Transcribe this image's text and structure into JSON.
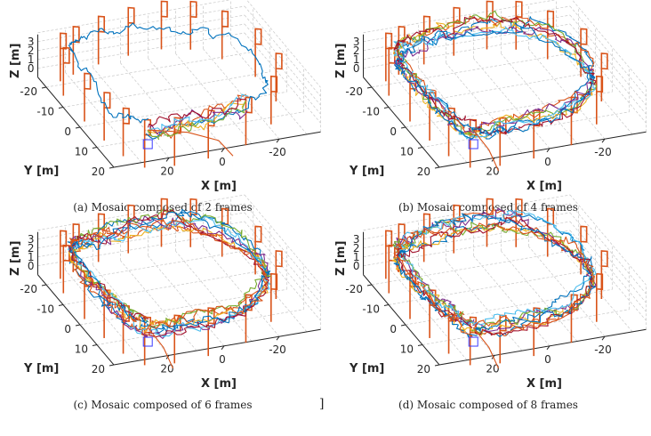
{
  "figure": {
    "stray_text": "]"
  },
  "colors": {
    "landmark": "#D95319",
    "start_marker": "#3a3aff",
    "grid": "#c8c8c8",
    "series": [
      "#0072BD",
      "#D95319",
      "#EDB120",
      "#7E2F8E",
      "#77AC30",
      "#4DBEEE",
      "#A2142F"
    ]
  },
  "chart_data": [
    {
      "type": "line",
      "panel": "a",
      "caption": "(a)  Mosaic composed of 2 frames",
      "frames": 2,
      "xlabel": "X [m]",
      "ylabel": "Y [m]",
      "zlabel": "Z [m]",
      "xticks": [
        "20",
        "0",
        "-20"
      ],
      "yticks": [
        "-20",
        "-10",
        "0",
        "10",
        "20"
      ],
      "zticks": [
        "0",
        "1",
        "2",
        "3"
      ],
      "xlim": [
        -35,
        40
      ],
      "ylim": [
        -25,
        20
      ],
      "zlim": [
        -1,
        3
      ],
      "grid": true,
      "coverage": "full loop (blue) + partial segments near start",
      "trajectory_count": 7
    },
    {
      "type": "line",
      "panel": "b",
      "caption": "(b)  Mosaic composed of 4 frames",
      "frames": 4,
      "xlabel": "X [m]",
      "ylabel": "Y [m]",
      "zlabel": "Z [m]",
      "xticks": [
        "20",
        "0",
        "-20"
      ],
      "yticks": [
        "-20",
        "-10",
        "0",
        "10",
        "20"
      ],
      "zticks": [
        "0",
        "1",
        "2",
        "3"
      ],
      "xlim": [
        -35,
        40
      ],
      "ylim": [
        -25,
        20
      ],
      "zlim": [
        -1,
        3
      ],
      "grid": true,
      "coverage": "full loop",
      "trajectory_count": 8
    },
    {
      "type": "line",
      "panel": "c",
      "caption": "(c)  Mosaic composed of 6 frames",
      "frames": 6,
      "xlabel": "X [m]",
      "ylabel": "Y [m]",
      "zlabel": "Z [m]",
      "xticks": [
        "20",
        "0",
        "-20"
      ],
      "yticks": [
        "-20",
        "-10",
        "0",
        "10",
        "20"
      ],
      "zticks": [
        "0",
        "1",
        "2",
        "3"
      ],
      "xlim": [
        -35,
        40
      ],
      "ylim": [
        -25,
        20
      ],
      "zlim": [
        -1,
        3
      ],
      "grid": true,
      "coverage": "full loop",
      "trajectory_count": 9
    },
    {
      "type": "line",
      "panel": "d",
      "caption": "(d)  Mosaic composed of 8 frames",
      "frames": 8,
      "xlabel": "X [m]",
      "ylabel": "Y [m]",
      "zlabel": "Z [m]",
      "xticks": [
        "20",
        "0",
        "-20"
      ],
      "yticks": [
        "-20",
        "-10",
        "0",
        "10",
        "20"
      ],
      "zticks": [
        "0",
        "1",
        "2",
        "3"
      ],
      "xlim": [
        -35,
        40
      ],
      "ylim": [
        -25,
        20
      ],
      "zlim": [
        -1,
        3
      ],
      "grid": true,
      "coverage": "full loop",
      "trajectory_count": 9
    }
  ],
  "loop_waypoints_xy_m": [
    [
      24,
      14
    ],
    [
      9,
      15
    ],
    [
      -10,
      12
    ],
    [
      -27,
      1
    ],
    [
      -29,
      -14
    ],
    [
      -20,
      -27
    ],
    [
      -9,
      -31
    ],
    [
      8,
      -30
    ],
    [
      22,
      -27
    ],
    [
      29,
      -23
    ],
    [
      30,
      -8
    ],
    [
      28,
      5
    ],
    [
      24,
      14
    ]
  ],
  "start_xy_m": [
    24,
    14
  ],
  "landmark_count": 18
}
